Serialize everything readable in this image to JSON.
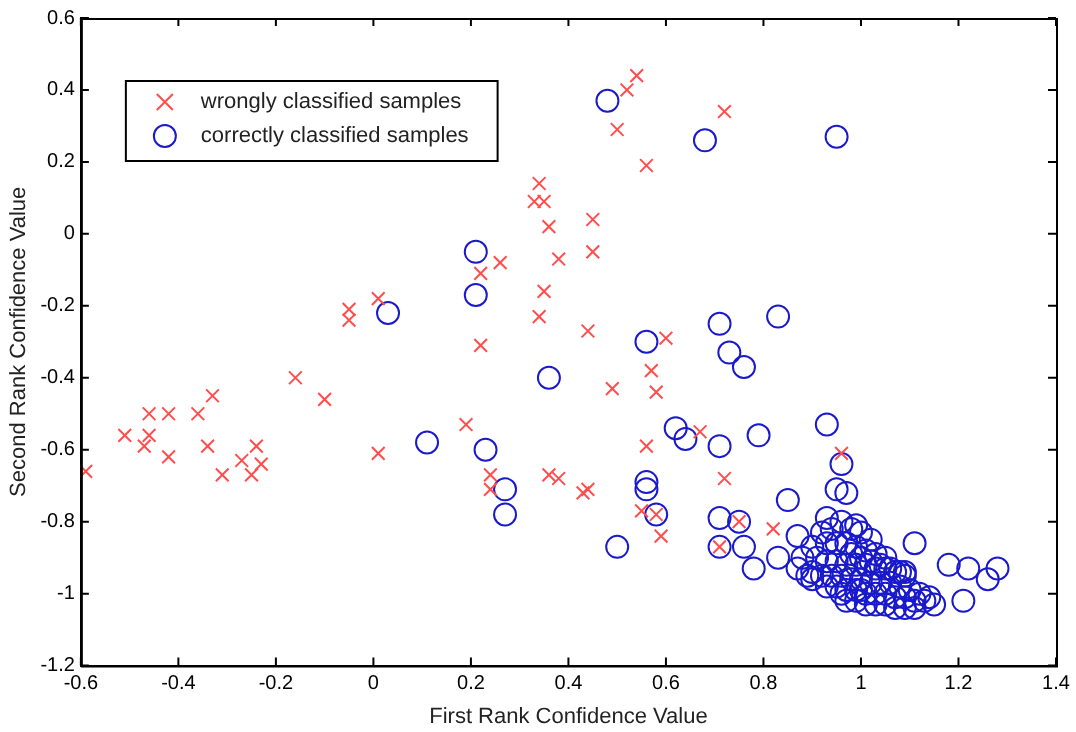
{
  "chart_data": {
    "type": "scatter",
    "xlabel": "First Rank Confidence Value",
    "ylabel": "Second Rank Confidence Value",
    "xlim": [
      -0.6,
      1.4
    ],
    "xticks": [
      -0.6,
      -0.4,
      -0.2,
      0,
      0.2,
      0.4,
      0.6,
      0.8,
      1,
      1.2,
      1.4
    ],
    "ylim": [
      -1.2,
      0.6
    ],
    "yticks": [
      -1.2,
      -1,
      -0.8,
      -0.6,
      -0.4,
      -0.2,
      0,
      0.2,
      0.4,
      0.6
    ],
    "grid": false,
    "legend": "top left",
    "series": [
      {
        "name": "wrongly classified samples",
        "color": "#ff4d4d",
        "marker": "cross",
        "x": [
          -0.59,
          -0.51,
          -0.46,
          -0.42,
          -0.46,
          -0.47,
          -0.42,
          -0.36,
          -0.33,
          -0.34,
          -0.31,
          -0.27,
          -0.24,
          -0.25,
          -0.23,
          -0.16,
          -0.1,
          0.01,
          0.19,
          0.22,
          0.24,
          0.24,
          0.36,
          0.38,
          0.43,
          -0.05,
          -0.05,
          0.01,
          0.22,
          0.26,
          0.34,
          0.33,
          0.35,
          0.36,
          0.38,
          0.35,
          0.34,
          0.54,
          0.52,
          0.72,
          0.5,
          0.56,
          0.45,
          0.45,
          0.44,
          0.6,
          0.57,
          0.49,
          0.58,
          0.67,
          0.56,
          0.44,
          0.72,
          0.96,
          0.55,
          0.58,
          0.59,
          0.75,
          0.82,
          0.71
        ],
        "values": [
          -0.66,
          -0.56,
          -0.5,
          -0.5,
          -0.56,
          -0.59,
          -0.62,
          -0.5,
          -0.45,
          -0.59,
          -0.67,
          -0.63,
          -0.59,
          -0.67,
          -0.64,
          -0.4,
          -0.46,
          -0.61,
          -0.53,
          -0.31,
          -0.67,
          -0.71,
          -0.67,
          -0.68,
          -0.72,
          -0.21,
          -0.24,
          -0.18,
          -0.11,
          -0.08,
          0.14,
          0.09,
          0.09,
          0.02,
          -0.07,
          -0.16,
          -0.23,
          0.44,
          0.4,
          0.34,
          0.29,
          0.19,
          0.04,
          -0.05,
          -0.27,
          -0.29,
          -0.38,
          -0.43,
          -0.44,
          -0.55,
          -0.59,
          -0.71,
          -0.68,
          -0.61,
          -0.77,
          -0.78,
          -0.84,
          -0.8,
          -0.82,
          -0.87
        ]
      },
      {
        "name": "correctly classified samples",
        "color": "#1a1acc",
        "marker": "circle",
        "x": [
          0.48,
          0.68,
          0.95,
          0.21,
          0.21,
          0.03,
          0.11,
          0.23,
          0.36,
          0.27,
          0.27,
          0.56,
          0.71,
          0.83,
          0.73,
          0.76,
          0.62,
          0.64,
          0.71,
          0.79,
          0.93,
          0.96,
          0.95,
          0.97,
          0.56,
          0.56,
          0.58,
          0.5,
          0.71,
          0.75,
          0.71,
          0.76,
          0.78,
          0.85,
          0.83,
          0.87,
          0.93,
          0.99,
          1.11,
          1.18,
          1.22,
          1.26,
          1.28,
          1.21,
          1.14,
          0.9,
          1.09,
          0.92,
          0.94,
          0.96,
          0.98,
          1.0,
          1.02,
          0.9,
          0.93,
          0.95,
          0.97,
          0.99,
          1.01,
          1.03,
          1.05,
          0.88,
          0.91,
          0.93,
          0.95,
          0.97,
          0.99,
          1.01,
          1.03,
          1.05,
          1.07,
          1.09,
          0.9,
          0.92,
          0.94,
          0.96,
          0.98,
          1.0,
          1.02,
          1.04,
          1.06,
          1.08,
          1.1,
          1.12,
          0.93,
          0.95,
          0.97,
          0.99,
          1.01,
          1.03,
          1.05,
          1.07,
          1.09,
          1.11,
          1.13,
          1.15,
          0.97,
          0.99,
          1.01,
          1.03,
          1.05,
          1.07,
          1.09,
          1.11,
          0.98,
          1.0,
          1.02,
          1.04,
          1.06,
          1.08,
          0.87,
          0.89,
          1.0,
          0.96
        ],
        "values": [
          0.37,
          0.26,
          0.27,
          -0.05,
          -0.17,
          -0.22,
          -0.58,
          -0.6,
          -0.4,
          -0.71,
          -0.78,
          -0.3,
          -0.25,
          -0.23,
          -0.33,
          -0.37,
          -0.54,
          -0.57,
          -0.59,
          -0.56,
          -0.53,
          -0.64,
          -0.71,
          -0.72,
          -0.69,
          -0.71,
          -0.78,
          -0.87,
          -0.79,
          -0.8,
          -0.87,
          -0.87,
          -0.93,
          -0.74,
          -0.9,
          -0.84,
          -0.79,
          -0.81,
          -0.86,
          -0.92,
          -0.93,
          -0.96,
          -0.93,
          -1.02,
          -1.01,
          -0.96,
          -0.94,
          -0.83,
          -0.82,
          -0.8,
          -0.82,
          -0.83,
          -0.85,
          -0.87,
          -0.86,
          -0.86,
          -0.86,
          -0.87,
          -0.88,
          -0.89,
          -0.9,
          -0.9,
          -0.9,
          -0.91,
          -0.91,
          -0.92,
          -0.92,
          -0.92,
          -0.93,
          -0.93,
          -0.94,
          -0.95,
          -0.94,
          -0.95,
          -0.95,
          -0.95,
          -0.96,
          -0.96,
          -0.97,
          -0.97,
          -0.97,
          -0.98,
          -0.99,
          -1.0,
          -0.98,
          -0.98,
          -0.99,
          -0.99,
          -1.0,
          -1.0,
          -1.0,
          -1.01,
          -1.01,
          -1.02,
          -1.02,
          -1.03,
          -1.02,
          -1.02,
          -1.03,
          -1.03,
          -1.03,
          -1.04,
          -1.04,
          -1.04,
          -0.89,
          -0.9,
          -0.91,
          -0.92,
          -0.93,
          -0.94,
          -0.93,
          -0.95,
          -0.99,
          -1.0
        ]
      }
    ]
  }
}
